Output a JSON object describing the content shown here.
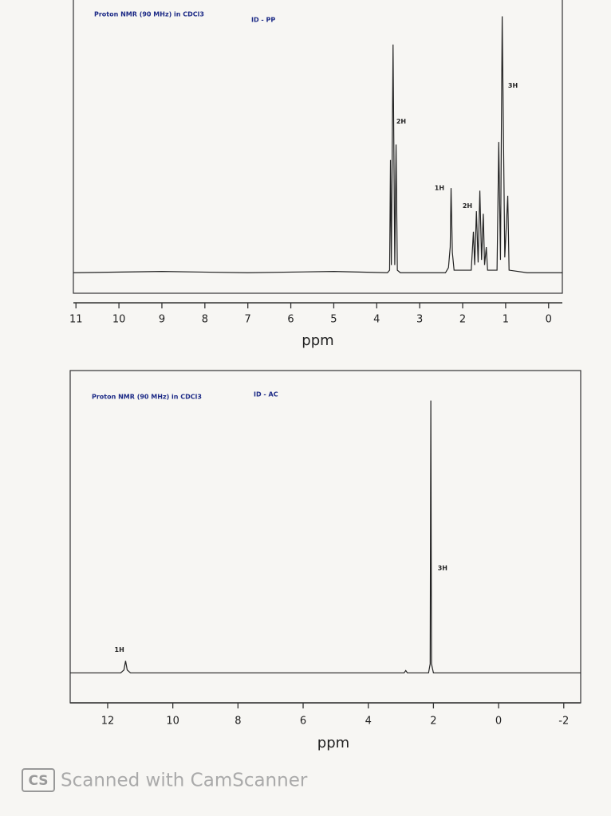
{
  "chart_data": [
    {
      "type": "line",
      "title": "Proton NMR (90 MHz)  in CDCl3",
      "subtitle": "ID - PP",
      "x_label": "ppm",
      "color": "#222222",
      "x": [
        11.06,
        9,
        7,
        5,
        3.75,
        3.7,
        3.68,
        3.66,
        3.62,
        3.58,
        3.55,
        3.52,
        3.45,
        2.4,
        2.33,
        2.29,
        2.27,
        2.24,
        2.2,
        1.8,
        1.75,
        1.72,
        1.68,
        1.64,
        1.6,
        1.56,
        1.52,
        1.49,
        1.45,
        1.42,
        1.2,
        1.16,
        1.12,
        1.08,
        1.02,
        0.95,
        0.92,
        0.5,
        -0.32
      ],
      "values": [
        0,
        0.5,
        0,
        0.5,
        0,
        1,
        44,
        3,
        89,
        3,
        50,
        1,
        0,
        0,
        2,
        10,
        33,
        8,
        1,
        1,
        16,
        3,
        24,
        4,
        32,
        5,
        23,
        3,
        10,
        1,
        1,
        51,
        5,
        100,
        6,
        30,
        1,
        0,
        0
      ],
      "xlim": [
        11.06,
        -0.32
      ],
      "ylim": [
        -8,
        107
      ],
      "xticks": [
        11,
        10,
        9,
        8,
        7,
        6,
        5,
        4,
        3,
        2,
        1,
        0
      ],
      "annotations": [
        {
          "text": "2H",
          "x": 3.43,
          "y": 59
        },
        {
          "text": "1H",
          "x": 2.54,
          "y": 33
        },
        {
          "text": "2H",
          "x": 1.89,
          "y": 26
        },
        {
          "text": "3H",
          "x": 0.83,
          "y": 73
        }
      ]
    },
    {
      "type": "line",
      "title": "Proton NMR (90 MHz) in CDCl3",
      "subtitle": "ID - AC",
      "x_label": "ppm",
      "color": "#222222",
      "x": [
        13.15,
        11.6,
        11.5,
        11.45,
        11.4,
        11.3,
        6,
        2.9,
        2.85,
        2.8,
        2.15,
        2.1,
        2.08,
        2.06,
        2.0,
        -2.52
      ],
      "values": [
        0,
        0,
        1,
        4,
        1,
        0,
        0,
        0,
        0.8,
        0,
        0,
        3,
        91,
        3,
        0,
        0
      ],
      "xlim": [
        13.15,
        -2.52
      ],
      "ylim": [
        -10,
        101
      ],
      "xticks": [
        12,
        10,
        8,
        6,
        4,
        2,
        0,
        -2
      ],
      "annotations": [
        {
          "text": "1H",
          "x": 11.64,
          "y": 7.7
        },
        {
          "text": "3H",
          "x": 1.72,
          "y": 35
        }
      ]
    }
  ],
  "footer": {
    "logo": "CS",
    "text": "Scanned with CamScanner"
  }
}
